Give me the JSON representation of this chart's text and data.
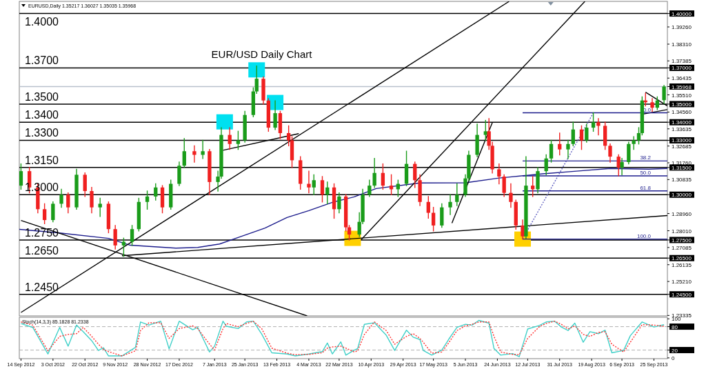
{
  "chart_data": [
    {
      "type": "candlestick",
      "title": "EUR/USD Daily Chart",
      "subtitle": "EURUSD,Daily  1.35217 1.36027 1.35035 1.35968",
      "colors": [
        "#1a9c1a",
        "#f02020",
        "#f02020",
        "#f02020",
        "#1a9c1a",
        "#1a9c1a",
        "#f02020",
        "#1a9c1a",
        "#f02020",
        "#f02020",
        "#1a9c1a",
        "#f02020",
        "#f02020",
        "#1a9c1a",
        "#1a9c1a",
        "#1a9c1a",
        "#1a9c1a",
        "#1a9c1a",
        "#f02020",
        "#1a9c1a",
        "#1a9c1a",
        "#1a9c1a",
        "#f02020",
        "#1a9c1a",
        "#f02020",
        "#1a9c1a",
        "#1a9c1a",
        "#f02020",
        "#1a9c1a",
        "#1a9c1a",
        "#1a9c1a",
        "#1a9c1a",
        "#f02020",
        "#f02020",
        "#1a9c1a",
        "#f02020",
        "#f02020",
        "#f02020",
        "#f02020",
        "#f02020",
        "#1a9c1a",
        "#f02020",
        "#1a9c1a",
        "#f02020",
        "#1a9c1a",
        "#f02020",
        "#f02020",
        "#1a9c1a",
        "#1a9c1a",
        "#1a9c1a",
        "#1a9c1a",
        "#f02020",
        "#f02020",
        "#1a9c1a",
        "#1a9c1a",
        "#f02020",
        "#f02020",
        "#f02020",
        "#f02020",
        "#1a9c1a",
        "#1a9c1a",
        "#1a9c1a",
        "#1a9c1a",
        "#1a9c1a",
        "#1a9c1a",
        "#1a9c1a",
        "#f02020",
        "#f02020",
        "#f02020",
        "#f02020",
        "#f02020",
        "#f02020",
        "#f02020",
        "#1a9c1a",
        "#f02020",
        "#1a9c1a",
        "#1a9c1a",
        "#1a9c1a",
        "#f02020",
        "#1a9c1a",
        "#1a9c1a",
        "#f02020",
        "#1a9c1a",
        "#1a9c1a",
        "#f02020",
        "#f02020",
        "#f02020",
        "#f02020",
        "#1a9c1a",
        "#1a9c1a",
        "#1a9c1a",
        "#1a9c1a",
        "#1a9c1a",
        "#f02020",
        "#f02020",
        "#1a9c1a",
        "#1a9c1a"
      ],
      "x": [
        "2012-09-14",
        "2012-09-19",
        "2012-09-24",
        "2012-09-28",
        "2012-10-03",
        "2012-10-08",
        "2012-10-12",
        "2012-10-17",
        "2012-10-22",
        "2012-10-26",
        "2012-10-31",
        "2012-11-05",
        "2012-11-09",
        "2012-11-14",
        "2012-11-19",
        "2012-11-23",
        "2012-11-28",
        "2012-12-03",
        "2012-12-07",
        "2012-12-12",
        "2012-12-17",
        "2012-12-20",
        "2012-12-26",
        "2012-12-31",
        "2013-01-04",
        "2013-01-09",
        "2013-01-11",
        "2013-01-16",
        "2013-01-21",
        "2013-01-25",
        "2013-01-30",
        "2013-02-01",
        "2013-02-05",
        "2013-02-08",
        "2013-02-12",
        "2013-02-15",
        "2013-02-20",
        "2013-02-22",
        "2013-02-27",
        "2013-03-04",
        "2013-03-07",
        "2013-03-12",
        "2013-03-15",
        "2013-03-19",
        "2013-03-22",
        "2013-03-26",
        "2013-03-28",
        "2013-04-03",
        "2013-04-05",
        "2013-04-09",
        "2013-04-12",
        "2013-04-17",
        "2013-04-22",
        "2013-04-26",
        "2013-05-01",
        "2013-05-06",
        "2013-05-09",
        "2013-05-14",
        "2013-05-17",
        "2013-05-22",
        "2013-05-27",
        "2013-05-31",
        "2013-06-05",
        "2013-06-07",
        "2013-06-12",
        "2013-06-17",
        "2013-06-19",
        "2013-06-21",
        "2013-06-25",
        "2013-06-28",
        "2013-07-02",
        "2013-07-05",
        "2013-07-09",
        "2013-07-11",
        "2013-07-15",
        "2013-07-18",
        "2013-07-23",
        "2013-07-26",
        "2013-07-31",
        "2013-08-05",
        "2013-08-08",
        "2013-08-13",
        "2013-08-16",
        "2013-08-20",
        "2013-08-23",
        "2013-08-27",
        "2013-08-30",
        "2013-09-04",
        "2013-09-06",
        "2013-09-10",
        "2013-09-13",
        "2013-09-16",
        "2013-09-18",
        "2013-09-20",
        "2013-09-24",
        "2013-09-27",
        "2013-10-01"
      ],
      "ohlc": [
        [
          1.305,
          1.317,
          1.303,
          1.313
        ],
        [
          1.313,
          1.315,
          1.301,
          1.304
        ],
        [
          1.304,
          1.306,
          1.29,
          1.292
        ],
        [
          1.292,
          1.295,
          1.284,
          1.286
        ],
        [
          1.286,
          1.296,
          1.285,
          1.295
        ],
        [
          1.295,
          1.303,
          1.293,
          1.3
        ],
        [
          1.3,
          1.301,
          1.29,
          1.293
        ],
        [
          1.293,
          1.314,
          1.292,
          1.311
        ],
        [
          1.311,
          1.312,
          1.299,
          1.302
        ],
        [
          1.302,
          1.304,
          1.29,
          1.293
        ],
        [
          1.293,
          1.298,
          1.288,
          1.295
        ],
        [
          1.295,
          1.296,
          1.279,
          1.281
        ],
        [
          1.281,
          1.283,
          1.27,
          1.272
        ],
        [
          1.272,
          1.276,
          1.266,
          1.274
        ],
        [
          1.274,
          1.283,
          1.272,
          1.281
        ],
        [
          1.281,
          1.298,
          1.28,
          1.296
        ],
        [
          1.296,
          1.302,
          1.292,
          1.299
        ],
        [
          1.299,
          1.306,
          1.297,
          1.304
        ],
        [
          1.304,
          1.305,
          1.29,
          1.293
        ],
        [
          1.293,
          1.308,
          1.292,
          1.306
        ],
        [
          1.306,
          1.318,
          1.305,
          1.316
        ],
        [
          1.316,
          1.331,
          1.315,
          1.324
        ],
        [
          1.324,
          1.327,
          1.318,
          1.322
        ],
        [
          1.322,
          1.33,
          1.32,
          1.324
        ],
        [
          1.324,
          1.325,
          1.3,
          1.307
        ],
        [
          1.307,
          1.313,
          1.302,
          1.31
        ],
        [
          1.31,
          1.337,
          1.309,
          1.333
        ],
        [
          1.333,
          1.337,
          1.325,
          1.328
        ],
        [
          1.328,
          1.335,
          1.325,
          1.33
        ],
        [
          1.33,
          1.346,
          1.329,
          1.344
        ],
        [
          1.344,
          1.359,
          1.343,
          1.357
        ],
        [
          1.357,
          1.371,
          1.356,
          1.364
        ],
        [
          1.364,
          1.365,
          1.35,
          1.352
        ],
        [
          1.352,
          1.353,
          1.335,
          1.337
        ],
        [
          1.337,
          1.3518,
          1.336,
          1.345
        ],
        [
          1.345,
          1.346,
          1.331,
          1.334
        ],
        [
          1.334,
          1.338,
          1.327,
          1.33
        ],
        [
          1.33,
          1.332,
          1.315,
          1.319
        ],
        [
          1.319,
          1.321,
          1.303,
          1.306
        ],
        [
          1.306,
          1.313,
          1.301,
          1.304
        ],
        [
          1.304,
          1.311,
          1.3,
          1.308
        ],
        [
          1.308,
          1.31,
          1.296,
          1.3
        ],
        [
          1.3,
          1.307,
          1.295,
          1.304
        ],
        [
          1.304,
          1.306,
          1.287,
          1.292
        ],
        [
          1.292,
          1.301,
          1.29,
          1.299
        ],
        [
          1.299,
          1.3,
          1.28,
          1.282
        ],
        [
          1.282,
          1.283,
          1.275,
          1.278
        ],
        [
          1.278,
          1.29,
          1.277,
          1.285
        ],
        [
          1.285,
          1.303,
          1.284,
          1.3
        ],
        [
          1.3,
          1.308,
          1.299,
          1.305
        ],
        [
          1.305,
          1.32,
          1.304,
          1.312
        ],
        [
          1.312,
          1.317,
          1.303,
          1.305
        ],
        [
          1.305,
          1.311,
          1.3,
          1.303
        ],
        [
          1.303,
          1.308,
          1.299,
          1.306
        ],
        [
          1.306,
          1.324,
          1.305,
          1.317
        ],
        [
          1.317,
          1.318,
          1.304,
          1.308
        ],
        [
          1.308,
          1.311,
          1.294,
          1.296
        ],
        [
          1.296,
          1.299,
          1.287,
          1.29
        ],
        [
          1.29,
          1.293,
          1.28,
          1.283
        ],
        [
          1.283,
          1.295,
          1.282,
          1.293
        ],
        [
          1.293,
          1.3,
          1.289,
          1.296
        ],
        [
          1.296,
          1.306,
          1.294,
          1.3
        ],
        [
          1.3,
          1.311,
          1.299,
          1.309
        ],
        [
          1.309,
          1.324,
          1.308,
          1.322
        ],
        [
          1.322,
          1.339,
          1.321,
          1.333
        ],
        [
          1.333,
          1.341,
          1.33,
          1.335
        ],
        [
          1.335,
          1.342,
          1.325,
          1.327
        ],
        [
          1.327,
          1.329,
          1.312,
          1.314
        ],
        [
          1.314,
          1.317,
          1.306,
          1.31
        ],
        [
          1.31,
          1.311,
          1.299,
          1.301
        ],
        [
          1.301,
          1.306,
          1.293,
          1.296
        ],
        [
          1.296,
          1.297,
          1.281,
          1.283
        ],
        [
          1.283,
          1.286,
          1.2755,
          1.277
        ],
        [
          1.277,
          1.321,
          1.276,
          1.305
        ],
        [
          1.305,
          1.31,
          1.299,
          1.303
        ],
        [
          1.303,
          1.315,
          1.301,
          1.313
        ],
        [
          1.313,
          1.322,
          1.311,
          1.32
        ],
        [
          1.32,
          1.33,
          1.318,
          1.328
        ],
        [
          1.328,
          1.334,
          1.322,
          1.325
        ],
        [
          1.325,
          1.33,
          1.32,
          1.328
        ],
        [
          1.328,
          1.34,
          1.327,
          1.336
        ],
        [
          1.336,
          1.338,
          1.325,
          1.33
        ],
        [
          1.33,
          1.339,
          1.329,
          1.337
        ],
        [
          1.337,
          1.3452,
          1.335,
          1.34
        ],
        [
          1.34,
          1.342,
          1.333,
          1.338
        ],
        [
          1.338,
          1.34,
          1.325,
          1.327
        ],
        [
          1.327,
          1.328,
          1.318,
          1.321
        ],
        [
          1.321,
          1.322,
          1.3105,
          1.315
        ],
        [
          1.315,
          1.32,
          1.311,
          1.318
        ],
        [
          1.318,
          1.329,
          1.317,
          1.328
        ],
        [
          1.328,
          1.332,
          1.325,
          1.33
        ],
        [
          1.33,
          1.337,
          1.328,
          1.334
        ],
        [
          1.334,
          1.354,
          1.333,
          1.352
        ],
        [
          1.352,
          1.356,
          1.349,
          1.351
        ],
        [
          1.351,
          1.353,
          1.346,
          1.348
        ],
        [
          1.348,
          1.354,
          1.347,
          1.352
        ],
        [
          1.35217,
          1.36027,
          1.35035,
          1.35968
        ]
      ],
      "xlim": [
        "2012-09-13",
        "2013-10-03"
      ],
      "ylim": [
        1.2331,
        1.4067
      ],
      "tick_labels": "y",
      "yticks": [
        {
          "value": 1.23335,
          "label": "1.23335"
        },
        {
          "value": 1.245,
          "label": "1.24500"
        },
        {
          "value": 1.2521,
          "label": "1.25210"
        },
        {
          "value": 1.26135,
          "label": "1.26135"
        },
        {
          "value": 1.265,
          "label": "1.26500"
        },
        {
          "value": 1.27085,
          "label": "1.27085"
        },
        {
          "value": 1.275,
          "label": "1.27500"
        },
        {
          "value": 1.2801,
          "label": "1.28010"
        },
        {
          "value": 1.2896,
          "label": "1.28960"
        },
        {
          "value": 1.3,
          "label": "1.30000"
        },
        {
          "value": 1.30835,
          "label": "1.30835"
        },
        {
          "value": 1.315,
          "label": "1.31500"
        },
        {
          "value": 1.3176,
          "label": "1.31760"
        },
        {
          "value": 1.32685,
          "label": "1.32685"
        },
        {
          "value": 1.33,
          "label": "1.33000"
        },
        {
          "value": 1.33635,
          "label": "1.33635"
        },
        {
          "value": 1.34,
          "label": "1.34000"
        },
        {
          "value": 1.3456,
          "label": "1.34560"
        },
        {
          "value": 1.35,
          "label": "1.35000"
        },
        {
          "value": 1.3551,
          "label": "1.35510"
        },
        {
          "value": 1.35968,
          "label": "1.35968"
        },
        {
          "value": 1.36435,
          "label": "1.36435"
        },
        {
          "value": 1.37,
          "label": "1.37000"
        },
        {
          "value": 1.37385,
          "label": "1.37385"
        },
        {
          "value": 1.3831,
          "label": "1.38310"
        },
        {
          "value": 1.3926,
          "label": "1.39260"
        },
        {
          "value": 1.4,
          "label": "1.40000"
        }
      ],
      "ref_lines": [
        {
          "axis": "y",
          "value": 1.4,
          "label": "1.4000",
          "color": "#000000"
        },
        {
          "axis": "y",
          "value": 1.37,
          "label": "1.3700",
          "color": "#000000"
        },
        {
          "axis": "y",
          "value": 1.35968,
          "color": "#b8c0cc"
        },
        {
          "axis": "y",
          "value": 1.35,
          "label": "1.3500",
          "color": "#000000"
        },
        {
          "axis": "y",
          "value": 1.34,
          "label": "1.3400",
          "color": "#000000"
        },
        {
          "axis": "y",
          "value": 1.33,
          "label": "1.3300",
          "color": "#000000"
        },
        {
          "axis": "y",
          "value": 1.315,
          "label": "1.3150",
          "color": "#000000"
        },
        {
          "axis": "y",
          "value": 1.3,
          "label": "1.3000",
          "color": "#000000"
        },
        {
          "axis": "y",
          "value": 1.275,
          "label": "1.2750",
          "color": "#000000"
        },
        {
          "axis": "y",
          "value": 1.265,
          "label": "1.2650",
          "color": "#000000"
        },
        {
          "axis": "y",
          "value": 1.245,
          "label": "1.2450",
          "color": "#000000"
        }
      ],
      "series": [
        {
          "type": "scatter",
          "marker": "square",
          "color": "#00e0f0",
          "x": [
            "2013-01-13",
            "2013-02-01",
            "2013-02-12"
          ],
          "values": [
            1.3402,
            1.3689,
            1.3509
          ]
        },
        {
          "type": "scatter",
          "marker": "square",
          "color": "#ffd000",
          "x": [
            "2013-03-30",
            "2013-07-09"
          ],
          "values": [
            1.2759,
            1.2755
          ]
        },
        {
          "type": "line",
          "color": "#1c1c8c",
          "x": [
            "2012-09-13",
            "2012-10-06",
            "2012-11-05",
            "2012-11-18",
            "2012-12-15",
            "2012-12-28",
            "2013-01-10",
            "2013-01-23",
            "2013-02-06",
            "2013-02-19",
            "2013-03-04",
            "2013-03-18",
            "2013-03-31",
            "2013-04-13",
            "2013-05-09",
            "2013-06-05",
            "2013-06-25",
            "2013-07-21",
            "2013-08-10",
            "2013-08-30",
            "2013-09-22",
            "2013-10-03"
          ],
          "values": [
            1.2809,
            1.279,
            1.2759,
            1.2721,
            1.2705,
            1.2709,
            1.2728,
            1.277,
            1.2816,
            1.2874,
            1.2912,
            1.2958,
            1.2988,
            1.3034,
            1.3065,
            1.3066,
            1.3092,
            1.3115,
            1.313,
            1.3145,
            1.3141,
            1.3145
          ]
        },
        {
          "type": "line",
          "color": "#000000",
          "x": [
            "2012-09-14",
            "2013-07-01"
          ],
          "values": [
            1.235,
            1.4067
          ]
        },
        {
          "type": "line",
          "color": "#000000",
          "x": [
            "2013-04-04",
            "2013-08-15"
          ],
          "values": [
            1.2751,
            1.4067
          ]
        },
        {
          "type": "line",
          "color": "#000000",
          "x": [
            "2012-09-14",
            "2013-03-03"
          ],
          "values": [
            1.2858,
            1.2331
          ]
        },
        {
          "type": "line",
          "color": "#000000",
          "x": [
            "2012-11-13",
            "2013-10-03"
          ],
          "values": [
            1.2663,
            1.2885
          ]
        },
        {
          "type": "line",
          "color": "#000000",
          "x": [
            "2013-01-12",
            "2013-02-26"
          ],
          "values": [
            1.3245,
            1.3337
          ]
        },
        {
          "type": "line",
          "color": "#000000",
          "x": [
            "2013-05-28",
            "2013-06-21"
          ],
          "values": [
            1.2843,
            1.3398
          ]
        },
        {
          "type": "line",
          "color": "#000000",
          "x": [
            "2013-09-20",
            "2013-10-03"
          ],
          "values": [
            1.3566,
            1.349
          ]
        },
        {
          "type": "line",
          "color": "#000000",
          "x": [
            "2013-09-18",
            "2013-10-03"
          ],
          "values": [
            1.3444,
            1.347
          ]
        },
        {
          "type": "line",
          "color": "#6060c0",
          "line_style": "dotted",
          "x": [
            "2013-07-09",
            "2013-08-20"
          ],
          "values": [
            1.2755,
            1.3452
          ]
        },
        {
          "type": "line",
          "name": "0.0",
          "color": "#1c1c8c",
          "x": [
            "2013-07-09",
            "2013-10-03"
          ],
          "values": [
            1.3452,
            1.3452
          ]
        },
        {
          "type": "line",
          "name": "38.2",
          "color": "#1c1c8c",
          "x": [
            "2013-07-09",
            "2013-10-03"
          ],
          "values": [
            1.3186,
            1.3186
          ]
        },
        {
          "type": "line",
          "name": "50.0",
          "color": "#1c1c8c",
          "x": [
            "2013-07-09",
            "2013-10-03"
          ],
          "values": [
            1.3104,
            1.3104
          ]
        },
        {
          "type": "line",
          "name": "61.8",
          "color": "#1c1c8c",
          "x": [
            "2013-07-09",
            "2013-10-03"
          ],
          "values": [
            1.3021,
            1.3021
          ]
        },
        {
          "type": "line",
          "name": "100.0",
          "color": "#1c1c8c",
          "x": [
            "2013-07-09",
            "2013-10-03"
          ],
          "values": [
            1.2755,
            1.2755
          ]
        }
      ]
    },
    {
      "type": "line",
      "title": "Stoch(14,3,3) 85.1828 81.2338",
      "xlim": [
        "2012-09-13",
        "2013-10-03"
      ],
      "ylim": [
        -2,
        104
      ],
      "x": [
        "2012-09-14",
        "2012-09-21",
        "2012-09-30",
        "2012-10-07",
        "2012-10-12",
        "2012-10-17",
        "2012-10-21",
        "2012-10-26",
        "2012-10-30",
        "2012-11-02",
        "2012-11-05",
        "2012-11-13",
        "2012-11-21",
        "2012-11-24",
        "2012-11-29",
        "2012-12-06",
        "2012-12-11",
        "2012-12-17",
        "2012-12-25",
        "2012-12-28",
        "2013-01-04",
        "2013-01-07",
        "2013-01-12",
        "2013-01-14",
        "2013-01-21",
        "2013-01-26",
        "2013-01-30",
        "2013-02-04",
        "2013-02-10",
        "2013-02-19",
        "2013-02-24",
        "2013-03-04",
        "2013-03-12",
        "2013-03-15",
        "2013-03-18",
        "2013-03-23",
        "2013-03-26",
        "2013-03-31",
        "2013-04-02",
        "2013-04-06",
        "2013-04-12",
        "2013-04-19",
        "2013-04-24",
        "2013-05-01",
        "2013-05-05",
        "2013-05-09",
        "2013-05-11",
        "2013-05-16",
        "2013-05-22",
        "2013-05-26",
        "2013-05-31",
        "2013-06-05",
        "2013-06-09",
        "2013-06-13",
        "2013-06-19",
        "2013-06-22",
        "2013-06-26",
        "2013-07-03",
        "2013-07-07",
        "2013-07-12",
        "2013-07-19",
        "2013-07-23",
        "2013-07-28",
        "2013-08-01",
        "2013-08-05",
        "2013-08-09",
        "2013-08-14",
        "2013-08-18",
        "2013-08-23",
        "2013-08-27",
        "2013-08-31",
        "2013-09-07",
        "2013-09-11",
        "2013-09-18",
        "2013-09-25",
        "2013-10-01"
      ],
      "series": [
        {
          "color": "#40d0c8",
          "values": [
            88,
            78,
            10,
            78,
            30,
            84,
            67,
            44,
            19,
            26,
            5,
            5,
            27,
            92,
            84,
            94,
            23,
            94,
            72,
            78,
            15,
            30,
            94,
            81,
            75,
            92,
            94,
            61,
            13,
            10,
            5,
            10,
            16,
            38,
            10,
            41,
            7,
            20,
            24,
            86,
            90,
            58,
            19,
            71,
            53,
            47,
            19,
            7,
            20,
            47,
            78,
            86,
            84,
            96,
            89,
            24,
            7,
            11,
            3,
            74,
            83,
            92,
            94,
            79,
            70,
            89,
            40,
            67,
            62,
            71,
            13,
            19,
            57,
            92,
            79,
            85
          ]
        },
        {
          "color": "#ff3030",
          "line_style": "dotted",
          "values": [
            92,
            84,
            18,
            55,
            60,
            62,
            78,
            55,
            35,
            22,
            16,
            5,
            18,
            70,
            90,
            90,
            50,
            75,
            82,
            75,
            35,
            20,
            75,
            88,
            80,
            88,
            94,
            75,
            25,
            12,
            8,
            9,
            13,
            25,
            28,
            30,
            25,
            15,
            18,
            60,
            92,
            70,
            35,
            55,
            62,
            50,
            40,
            12,
            15,
            38,
            70,
            82,
            86,
            92,
            92,
            55,
            15,
            9,
            8,
            50,
            80,
            88,
            94,
            86,
            74,
            82,
            60,
            55,
            65,
            67,
            35,
            15,
            40,
            85,
            84,
            81
          ]
        }
      ],
      "yticks": [
        0,
        20,
        80,
        100
      ],
      "ref_lines": [
        {
          "axis": "y",
          "value": 20,
          "color": "#b0b0b0",
          "line_style": "dashed"
        },
        {
          "axis": "y",
          "value": 80,
          "color": "#b0b0b0",
          "line_style": "dashed"
        }
      ],
      "xticks": [
        {
          "value": "2012-09-14",
          "label": "14 Sep 2012"
        },
        {
          "value": "2012-10-03",
          "label": "3 Oct 2012"
        },
        {
          "value": "2012-10-22",
          "label": "22 Oct 2012"
        },
        {
          "value": "2012-11-09",
          "label": "9 Nov 2012"
        },
        {
          "value": "2012-11-28",
          "label": "28 Nov 2012"
        },
        {
          "value": "2012-12-17",
          "label": "17 Dec 2012"
        },
        {
          "value": "2013-01-07",
          "label": "7 Jan 2013"
        },
        {
          "value": "2013-01-25",
          "label": "25 Jan 2013"
        },
        {
          "value": "2013-02-13",
          "label": "13 Feb 2013"
        },
        {
          "value": "2013-03-04",
          "label": "4 Mar 2013"
        },
        {
          "value": "2013-03-22",
          "label": "22 Mar 2013"
        },
        {
          "value": "2013-04-10",
          "label": "10 Apr 2013"
        },
        {
          "value": "2013-04-29",
          "label": "29 Apr 2013"
        },
        {
          "value": "2013-05-17",
          "label": "17 May 2013"
        },
        {
          "value": "2013-06-05",
          "label": "5 Jun 2013"
        },
        {
          "value": "2013-06-24",
          "label": "24 Jun 2013"
        },
        {
          "value": "2013-07-12",
          "label": "12 Jul 2013"
        },
        {
          "value": "2013-07-31",
          "label": "31 Jul 2013"
        },
        {
          "value": "2013-08-19",
          "label": "19 Aug 2013"
        },
        {
          "value": "2013-09-06",
          "label": "6 Sep 2013"
        },
        {
          "value": "2013-09-25",
          "label": "25 Sep 2013"
        }
      ]
    }
  ]
}
